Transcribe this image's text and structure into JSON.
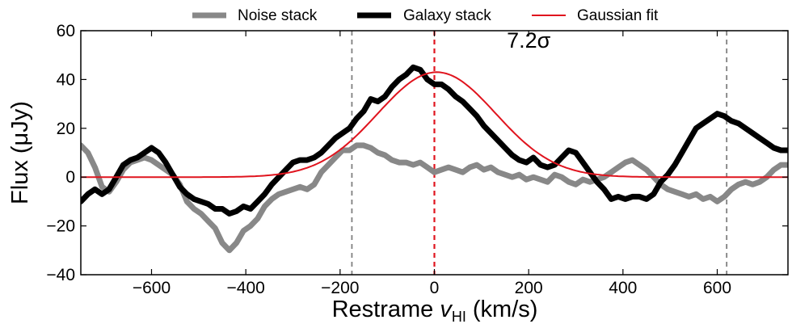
{
  "chart_data": {
    "type": "line",
    "xlabel": "Restrame v_HI (km/s)",
    "xlabel_main": "Restrame ",
    "xlabel_var": "v",
    "xlabel_sub": "HI",
    "xlabel_unit": " (km/s)",
    "ylabel": "Flux (μJy)",
    "xlim": [
      -750,
      750
    ],
    "ylim": [
      -40,
      60
    ],
    "xticks": [
      -600,
      -400,
      -200,
      0,
      200,
      400,
      600
    ],
    "yticks": [
      -40,
      -20,
      0,
      20,
      40,
      60
    ],
    "grid": false,
    "legend_position": "top",
    "annotation": {
      "text": "7.2σ",
      "x": 200,
      "y": 53
    },
    "vlines": [
      {
        "x": -175,
        "color": "#808080",
        "style": "dashed"
      },
      {
        "x": 0,
        "color": "#e0141e",
        "style": "dashed"
      },
      {
        "x": 620,
        "color": "#808080",
        "style": "dashed"
      }
    ],
    "series": [
      {
        "name": "Noise stack",
        "color": "#888888",
        "width": 7,
        "x": [
          -750,
          -735,
          -720,
          -705,
          -690,
          -675,
          -660,
          -645,
          -630,
          -615,
          -600,
          -585,
          -570,
          -555,
          -540,
          -525,
          -510,
          -495,
          -480,
          -465,
          -450,
          -435,
          -420,
          -405,
          -390,
          -375,
          -360,
          -345,
          -330,
          -315,
          -300,
          -285,
          -270,
          -255,
          -240,
          -225,
          -210,
          -195,
          -180,
          -165,
          -150,
          -135,
          -120,
          -105,
          -90,
          -75,
          -60,
          -45,
          -30,
          -15,
          0,
          15,
          30,
          45,
          60,
          75,
          90,
          105,
          120,
          135,
          150,
          165,
          180,
          195,
          210,
          225,
          240,
          255,
          270,
          285,
          300,
          315,
          330,
          345,
          360,
          375,
          390,
          405,
          420,
          435,
          450,
          465,
          480,
          495,
          510,
          525,
          540,
          555,
          570,
          585,
          600,
          615,
          630,
          645,
          660,
          675,
          690,
          705,
          720,
          735,
          750
        ],
        "y": [
          13,
          10,
          4,
          -4,
          -6,
          -2,
          3,
          6,
          7,
          8,
          7,
          5,
          3,
          1,
          -3,
          -10,
          -13,
          -15,
          -18,
          -21,
          -27,
          -30,
          -27,
          -22,
          -20,
          -17,
          -12,
          -9,
          -7,
          -6,
          -5,
          -4,
          -5,
          -3,
          2,
          5,
          8,
          11,
          11,
          13,
          13,
          12,
          10,
          9,
          7,
          6,
          6,
          5,
          6,
          4,
          2,
          3,
          4,
          3,
          2,
          4,
          5,
          3,
          4,
          2,
          1,
          0,
          1,
          -1,
          0,
          -1,
          -2,
          1,
          0,
          -2,
          -3,
          -1,
          -2,
          -1,
          0,
          2,
          4,
          6,
          7,
          5,
          3,
          0,
          -3,
          -5,
          -6,
          -7,
          -8,
          -7,
          -9,
          -8,
          -10,
          -8,
          -5,
          -3,
          -2,
          -3,
          -2,
          0,
          3,
          5,
          5
        ]
      },
      {
        "name": "Galaxy stack",
        "color": "#000000",
        "width": 7,
        "x": [
          -750,
          -735,
          -720,
          -705,
          -690,
          -675,
          -660,
          -645,
          -630,
          -615,
          -600,
          -585,
          -570,
          -555,
          -540,
          -525,
          -510,
          -495,
          -480,
          -465,
          -450,
          -435,
          -420,
          -405,
          -390,
          -375,
          -360,
          -345,
          -330,
          -315,
          -300,
          -285,
          -270,
          -255,
          -240,
          -225,
          -210,
          -195,
          -180,
          -165,
          -150,
          -135,
          -120,
          -105,
          -90,
          -75,
          -60,
          -45,
          -30,
          -15,
          0,
          15,
          30,
          45,
          60,
          75,
          90,
          105,
          120,
          135,
          150,
          165,
          180,
          195,
          210,
          225,
          240,
          255,
          270,
          285,
          300,
          315,
          330,
          345,
          360,
          375,
          390,
          405,
          420,
          435,
          450,
          465,
          480,
          495,
          510,
          525,
          540,
          555,
          570,
          585,
          600,
          615,
          630,
          645,
          660,
          675,
          690,
          705,
          720,
          735,
          750
        ],
        "y": [
          -10,
          -7,
          -5,
          -7,
          -5,
          0,
          5,
          7,
          8,
          10,
          12,
          10,
          6,
          1,
          -4,
          -7,
          -9,
          -10,
          -11,
          -13,
          -13,
          -15,
          -14,
          -12,
          -13,
          -10,
          -7,
          -3,
          0,
          3,
          6,
          7,
          7,
          8,
          10,
          13,
          16,
          18,
          20,
          24,
          27,
          32,
          31,
          33,
          37,
          40,
          42,
          45,
          44,
          40,
          38,
          38,
          36,
          33,
          31,
          28,
          25,
          21,
          18,
          15,
          12,
          9,
          7,
          6,
          8,
          5,
          4,
          5,
          8,
          11,
          10,
          6,
          2,
          -2,
          -5,
          -9,
          -8,
          -9,
          -8,
          -8,
          -9,
          -7,
          -2,
          1,
          5,
          10,
          15,
          20,
          22,
          24,
          26,
          25,
          23,
          22,
          20,
          18,
          16,
          14,
          12,
          11,
          11
        ]
      },
      {
        "name": "Gaussian fit",
        "color": "#e0141e",
        "width": 2,
        "gaussian": {
          "amplitude": 43,
          "mean": 5,
          "sigma": 125
        }
      }
    ]
  }
}
